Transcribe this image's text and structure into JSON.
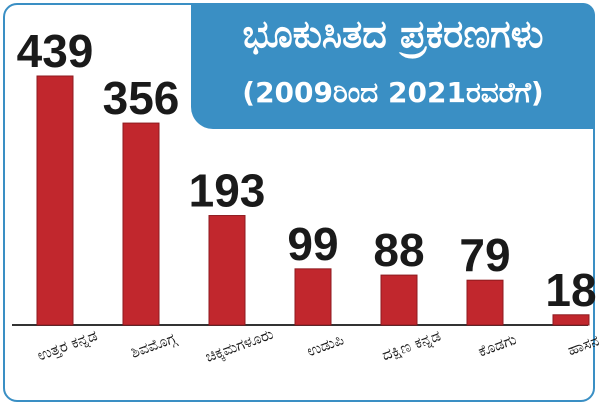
{
  "chart_data": {
    "type": "bar",
    "title": "ಭೂಕುಸಿತದ ಪ್ರಕರಣಗಳು",
    "subtitle": "(2009ರಿಂದ 2021ರವರೆಗೆ)",
    "categories": [
      "ಉತ್ತರ ಕನ್ನಡ",
      "ಶಿವಮೊಗ್ಗ",
      "ಚಿಕ್ಕಮಗಳೂರು",
      "ಉಡುಪಿ",
      "ದಕ್ಷಿಣ ಕನ್ನಡ",
      "ಕೊಡಗು",
      "ಹಾಸನ"
    ],
    "values": [
      439,
      356,
      193,
      99,
      88,
      79,
      18
    ],
    "value_labels": [
      "439",
      "356",
      "193",
      "99",
      "88",
      "79",
      "18"
    ],
    "xlabel": "",
    "ylabel": "",
    "ylim": [
      0,
      439
    ],
    "grid": false,
    "legend": "none",
    "colors": {
      "bar": "#c1272d",
      "bar_edge": "#8e1a1f",
      "accent": "#3a8fc4",
      "axis": "#333333"
    }
  }
}
